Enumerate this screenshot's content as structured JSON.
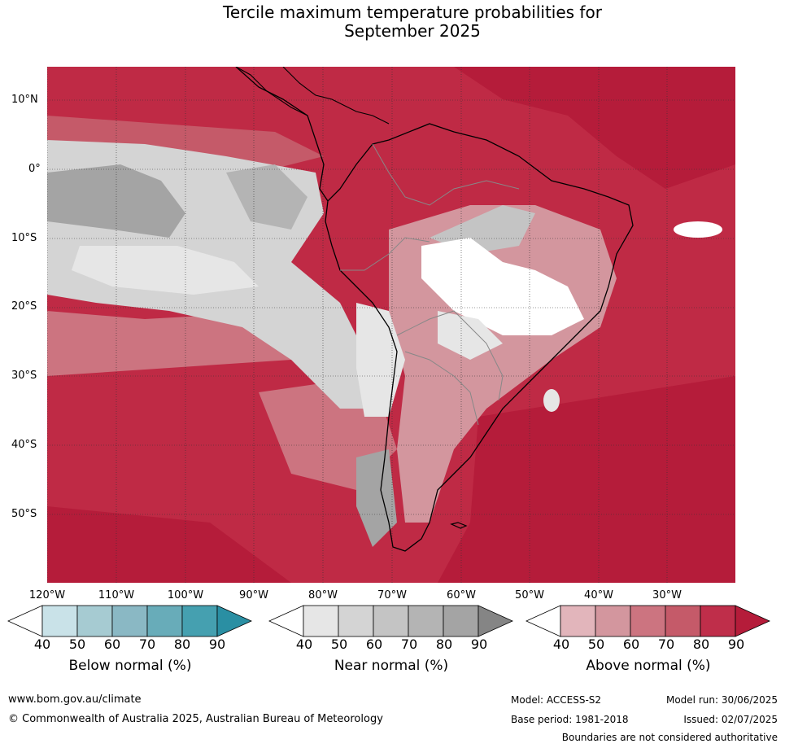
{
  "title_line1": "Tercile maximum temperature probabilities for",
  "title_line2": "September 2025",
  "lat_labels": [
    "10°N",
    "0°",
    "10°S",
    "20°S",
    "30°S",
    "40°S",
    "50°S"
  ],
  "lon_labels": [
    "120°W",
    "110°W",
    "100°W",
    "90°W",
    "80°W",
    "70°W",
    "60°W",
    "50°W",
    "40°W",
    "30°W"
  ],
  "colorbars": [
    {
      "title": "Below normal (%)",
      "ticks": [
        "40",
        "50",
        "60",
        "70",
        "80",
        "90"
      ],
      "colors": [
        "#ffffff",
        "#c9e2e8",
        "#a6cbd2",
        "#8ab8c4",
        "#68acb9",
        "#45a0b0",
        "#2a8fa3"
      ]
    },
    {
      "title": "Near normal (%)",
      "ticks": [
        "40",
        "50",
        "60",
        "70",
        "80",
        "90"
      ],
      "colors": [
        "#ffffff",
        "#e6e6e6",
        "#d4d4d4",
        "#c4c4c4",
        "#b4b4b4",
        "#a4a4a4",
        "#858585"
      ]
    },
    {
      "title": "Above normal (%)",
      "ticks": [
        "40",
        "50",
        "60",
        "70",
        "80",
        "90"
      ],
      "colors": [
        "#ffffff",
        "#e2b5bb",
        "#d3969e",
        "#cc7480",
        "#c55a69",
        "#bf2e4a",
        "#b51c3a"
      ]
    }
  ],
  "footer": {
    "url": "www.bom.gov.au/climate",
    "copyright": "© Commonwealth of Australia 2025, Australian Bureau of Meteorology",
    "model": "Model: ACCESS-S2",
    "base_period": "Base period: 1981-2018",
    "model_run": "Model run: 30/06/2025",
    "issued": "Issued: 02/07/2025",
    "disclaimer": "Boundaries are not considered authoritative"
  }
}
